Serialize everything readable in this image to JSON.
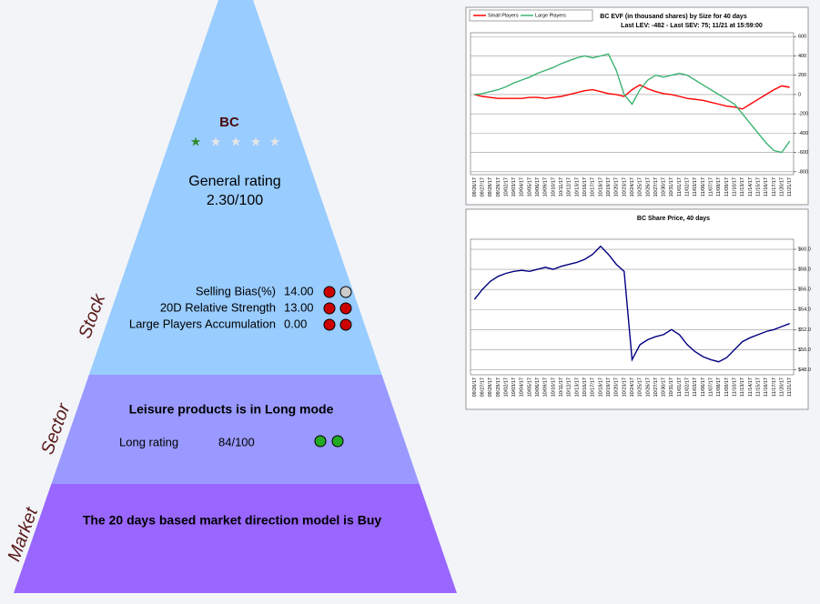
{
  "pyramid": {
    "stock": {
      "label": "Stock",
      "ticker": "BC",
      "rating_label": "General rating",
      "rating": "2.30/100",
      "rows": [
        [
          "Selling Bias(%)",
          "14.00"
        ],
        [
          "20D Relative Strength",
          "13.00"
        ],
        [
          "Large Players Accumulation",
          "0.00"
        ]
      ]
    },
    "sector": {
      "label": "Sector",
      "headline": "Leisure products is in Long mode",
      "rating_label": "Long rating",
      "rating": "84/100"
    },
    "market": {
      "label": "Market",
      "headline": "The 20 days based market direction model is Buy"
    }
  },
  "chart_data": [
    {
      "type": "line",
      "title": "BC EVF (in thousand shares) by Size for 40 days",
      "subtitle": "Last LEV: -482 - Last SEV: 75; 11/21 at 15:59:00",
      "x": [
        "09/26/17",
        "09/27/17",
        "09/28/17",
        "09/29/17",
        "10/02/17",
        "10/03/17",
        "10/04/17",
        "10/05/17",
        "10/06/17",
        "10/09/17",
        "10/10/17",
        "10/11/17",
        "10/12/17",
        "10/13/17",
        "10/16/17",
        "10/17/17",
        "10/18/17",
        "10/19/17",
        "10/20/17",
        "10/23/17",
        "10/24/17",
        "10/25/17",
        "10/26/17",
        "10/27/17",
        "10/30/17",
        "10/31/17",
        "11/01/17",
        "11/02/17",
        "11/03/17",
        "11/06/17",
        "11/07/17",
        "11/08/17",
        "11/09/17",
        "11/10/17",
        "11/13/17",
        "11/14/17",
        "11/15/17",
        "11/16/17",
        "11/17/17",
        "11/20/17",
        "11/21/17"
      ],
      "series": [
        {
          "name": "Small Players",
          "color": "#ff0000",
          "values": [
            0,
            -20,
            -30,
            -40,
            -40,
            -40,
            -40,
            -30,
            -30,
            -40,
            -30,
            -20,
            0,
            20,
            40,
            50,
            30,
            10,
            0,
            -20,
            50,
            100,
            60,
            30,
            10,
            0,
            -20,
            -40,
            -50,
            -60,
            -80,
            -100,
            -120,
            -130,
            -150,
            -100,
            -50,
            0,
            50,
            90,
            75
          ]
        },
        {
          "name": "Large Players",
          "color": "#3cb371",
          "values": [
            0,
            10,
            30,
            50,
            80,
            120,
            150,
            180,
            220,
            250,
            280,
            320,
            350,
            380,
            400,
            380,
            400,
            420,
            250,
            0,
            -100,
            50,
            150,
            200,
            180,
            200,
            220,
            200,
            150,
            100,
            50,
            0,
            -50,
            -100,
            -200,
            -300,
            -400,
            -500,
            -580,
            -600,
            -482
          ]
        }
      ],
      "ylim": [
        -830,
        640
      ],
      "yticks": [
        600,
        400,
        200,
        0,
        -200,
        -400,
        -600,
        -800
      ],
      "grid": true
    },
    {
      "type": "line",
      "title": "BC Share Price, 40 days",
      "x": [
        "09/26/17",
        "09/27/17",
        "09/28/17",
        "09/29/17",
        "10/02/17",
        "10/03/17",
        "10/04/17",
        "10/05/17",
        "10/06/17",
        "10/09/17",
        "10/10/17",
        "10/11/17",
        "10/12/17",
        "10/13/17",
        "10/16/17",
        "10/17/17",
        "10/18/17",
        "10/19/17",
        "10/20/17",
        "10/23/17",
        "10/24/17",
        "10/25/17",
        "10/26/17",
        "10/27/17",
        "10/30/17",
        "10/31/17",
        "11/01/17",
        "11/02/17",
        "11/03/17",
        "11/06/17",
        "11/07/17",
        "11/08/17",
        "11/09/17",
        "11/10/17",
        "11/13/17",
        "11/14/17",
        "11/15/17",
        "11/16/17",
        "11/17/17",
        "11/20/17",
        "11/21/17"
      ],
      "color": "#000080",
      "values": [
        55.0,
        56.0,
        56.8,
        57.3,
        57.6,
        57.8,
        57.9,
        57.8,
        58.0,
        58.2,
        58.0,
        58.3,
        58.5,
        58.7,
        59.0,
        59.5,
        60.3,
        59.5,
        58.5,
        57.8,
        49.0,
        50.5,
        51.0,
        51.3,
        51.5,
        52.0,
        51.5,
        50.5,
        49.8,
        49.3,
        49.0,
        48.8,
        49.2,
        50.0,
        50.8,
        51.2,
        51.5,
        51.8,
        52.0,
        52.3,
        52.6
      ],
      "ylim": [
        47.5,
        61
      ],
      "yticks": [
        {
          "value": 60,
          "label": "$60.0"
        },
        {
          "value": 58,
          "label": "$58.0"
        },
        {
          "value": 56,
          "label": "$56.0"
        },
        {
          "value": 54,
          "label": "$54.0"
        },
        {
          "value": 52,
          "label": "$52.0"
        },
        {
          "value": 50,
          "label": "$50.0"
        },
        {
          "value": 48,
          "label": "$48.0"
        }
      ],
      "grid": true
    }
  ]
}
